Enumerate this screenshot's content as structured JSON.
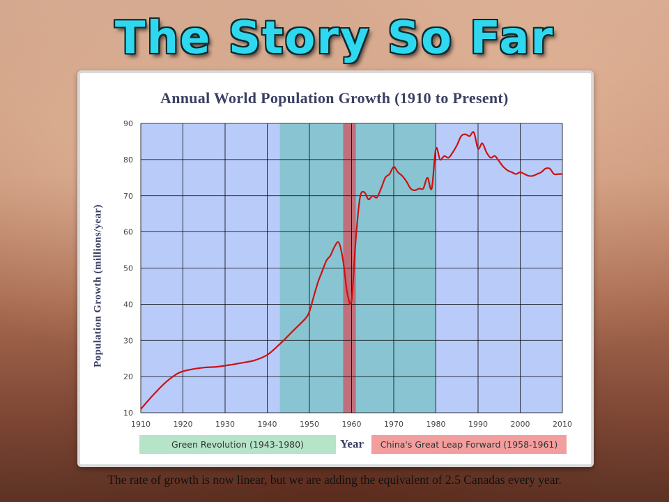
{
  "slide": {
    "title": "The Story So Far",
    "caption": "The rate of growth is now linear, but we are adding the equivalent of 2.5 Canadas every year."
  },
  "colors": {
    "title_fill": "#2fd8ee",
    "plot_bg": "#b9cbf9",
    "green_band": "#89c4d2",
    "red_band": "#c0707a",
    "line": "#cc1212",
    "legend_green": "#b5e4c8",
    "legend_red": "#f39e9e"
  },
  "chart_data": {
    "type": "line",
    "title": "Annual World Population Growth (1910 to Present)",
    "xlabel": "Year",
    "ylabel": "Population Growth (millions/year)",
    "xlim": [
      1910,
      2010
    ],
    "ylim": [
      10,
      90
    ],
    "x_ticks": [
      1910,
      1920,
      1930,
      1940,
      1950,
      1960,
      1970,
      1980,
      1990,
      2000,
      2010
    ],
    "y_ticks": [
      10,
      20,
      30,
      40,
      50,
      60,
      70,
      80,
      90
    ],
    "grid": true,
    "bands": [
      {
        "label": "Green Revolution (1943-1980)",
        "start": 1943,
        "end": 1980
      },
      {
        "label": "China's Great Leap Forward (1958-1961)",
        "start": 1958,
        "end": 1961
      }
    ],
    "series": [
      {
        "x": [
          1910,
          1913,
          1916,
          1919,
          1922,
          1925,
          1928,
          1931,
          1934,
          1937,
          1940,
          1943,
          1946,
          1949,
          1950,
          1951,
          1952,
          1953,
          1954,
          1955,
          1956,
          1957,
          1958,
          1959,
          1960,
          1961,
          1962,
          1963,
          1964,
          1965,
          1966,
          1967,
          1968,
          1969,
          1970,
          1971,
          1972,
          1973,
          1974,
          1975,
          1976,
          1977,
          1978,
          1979,
          1980,
          1981,
          1982,
          1983,
          1984,
          1985,
          1986,
          1987,
          1988,
          1989,
          1990,
          1991,
          1992,
          1993,
          1994,
          1995,
          1996,
          1997,
          1998,
          1999,
          2000,
          2001,
          2002,
          2003,
          2004,
          2005,
          2006,
          2007,
          2008,
          2009,
          2010
        ],
        "values": [
          11,
          15,
          18.5,
          21,
          22,
          22.5,
          22.7,
          23.2,
          23.8,
          24.5,
          26,
          29,
          32.5,
          36,
          38,
          42,
          46,
          49,
          52,
          53.5,
          56,
          57,
          52,
          43,
          41,
          58,
          69.5,
          71,
          69,
          70,
          69.5,
          72,
          75,
          76,
          78,
          76.5,
          75.5,
          74,
          72,
          71.5,
          72,
          72,
          75,
          72,
          83,
          80,
          81,
          80.5,
          82,
          84,
          86.5,
          87,
          86.5,
          87.5,
          83,
          84.5,
          82,
          80.5,
          81,
          79.5,
          78,
          77,
          76.5,
          76,
          76.5,
          76,
          75.5,
          75.5,
          76,
          76.5,
          77.5,
          77.5,
          76,
          76,
          76
        ]
      }
    ]
  }
}
